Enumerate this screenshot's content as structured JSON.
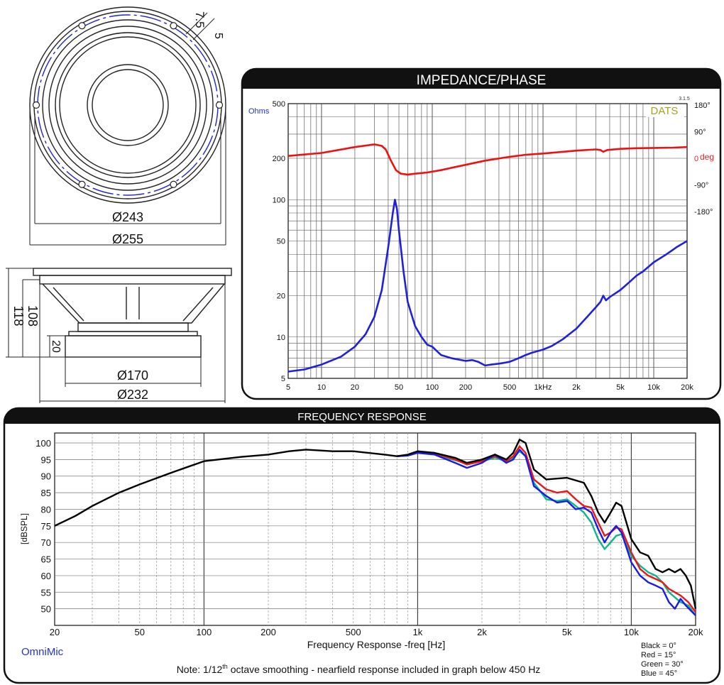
{
  "drawing": {
    "front": {
      "dims": [
        "Ø243",
        "Ø255"
      ],
      "side_dims": [
        "7.5",
        "5"
      ]
    },
    "side": {
      "dims": [
        "118",
        "108",
        "20",
        "Ø170",
        "Ø232"
      ]
    }
  },
  "chart_data": [
    {
      "type": "line",
      "title": "IMPEDANCE/PHASE",
      "xscale": "log",
      "xlim": [
        5,
        20000
      ],
      "x_ticks": [
        "5",
        "10",
        "20",
        "50",
        "100",
        "200",
        "500",
        "1kHz",
        "2k",
        "5k",
        "10k",
        "20k"
      ],
      "ylabel": "Ohms",
      "yscale": "log",
      "ylim": [
        5,
        500
      ],
      "y_ticks": [
        "500",
        "200",
        "100",
        "50",
        "20",
        "10",
        "5"
      ],
      "y2_ticks": [
        "180°",
        "90°",
        "0",
        "-90°",
        "-180°"
      ],
      "y2_unit": "deg",
      "y2lim": [
        -180,
        180
      ],
      "brand": "DATS",
      "brand_version": "3.1.5",
      "grid": true,
      "series": [
        {
          "color": "#1f1fdf",
          "axis": "left",
          "points": [
            [
              5,
              5.6
            ],
            [
              7,
              5.8
            ],
            [
              10,
              6.3
            ],
            [
              15,
              7.2
            ],
            [
              20,
              8.5
            ],
            [
              25,
              10.5
            ],
            [
              30,
              14
            ],
            [
              35,
              22
            ],
            [
              40,
              45
            ],
            [
              44,
              80
            ],
            [
              46,
              100
            ],
            [
              48,
              85
            ],
            [
              50,
              60
            ],
            [
              55,
              30
            ],
            [
              60,
              18
            ],
            [
              70,
              12
            ],
            [
              80,
              10
            ],
            [
              90,
              8.8
            ],
            [
              100,
              8.5
            ],
            [
              120,
              7.4
            ],
            [
              150,
              7
            ],
            [
              200,
              6.7
            ],
            [
              230,
              6.8
            ],
            [
              260,
              6.6
            ],
            [
              300,
              6.2
            ],
            [
              340,
              6.3
            ],
            [
              400,
              6.4
            ],
            [
              450,
              6.5
            ],
            [
              500,
              6.6
            ],
            [
              600,
              7
            ],
            [
              700,
              7.4
            ],
            [
              800,
              7.7
            ],
            [
              1000,
              8.1
            ],
            [
              1200,
              8.6
            ],
            [
              1500,
              9.6
            ],
            [
              2000,
              11.5
            ],
            [
              2500,
              14
            ],
            [
              3000,
              16.5
            ],
            [
              3300,
              18
            ],
            [
              3500,
              20
            ],
            [
              3700,
              18.5
            ],
            [
              4000,
              19.5
            ],
            [
              5000,
              22
            ],
            [
              6000,
              25
            ],
            [
              7000,
              28
            ],
            [
              8000,
              30
            ],
            [
              10000,
              35
            ],
            [
              13000,
              40
            ],
            [
              16000,
              45
            ],
            [
              20000,
              50
            ]
          ]
        },
        {
          "color": "#ee1111",
          "axis": "right",
          "points": [
            [
              5,
              8
            ],
            [
              10,
              18
            ],
            [
              20,
              38
            ],
            [
              30,
              47
            ],
            [
              35,
              42
            ],
            [
              38,
              30
            ],
            [
              42,
              -5
            ],
            [
              47,
              -40
            ],
            [
              52,
              -52
            ],
            [
              60,
              -55
            ],
            [
              70,
              -52
            ],
            [
              90,
              -48
            ],
            [
              120,
              -40
            ],
            [
              150,
              -32
            ],
            [
              200,
              -22
            ],
            [
              300,
              -8
            ],
            [
              500,
              5
            ],
            [
              700,
              12
            ],
            [
              1000,
              16
            ],
            [
              2000,
              26
            ],
            [
              3000,
              30
            ],
            [
              3300,
              28
            ],
            [
              3500,
              22
            ],
            [
              3800,
              28
            ],
            [
              5000,
              32
            ],
            [
              7000,
              34
            ],
            [
              10000,
              35
            ],
            [
              15000,
              36
            ],
            [
              20000,
              38
            ]
          ]
        }
      ]
    },
    {
      "type": "line",
      "title": "FREQUENCY RESPONSE",
      "xlabel": "Frequency Response -freq [Hz]",
      "ylabel": "[dBSPL]",
      "xscale": "log",
      "xlim": [
        20,
        20000
      ],
      "ylim": [
        45,
        103
      ],
      "x_ticks": [
        "20",
        "50",
        "100",
        "200",
        "500",
        "1k",
        "2k",
        "5k",
        "10k",
        "20k"
      ],
      "y_ticks": [
        "100",
        "95",
        "90",
        "85",
        "80",
        "75",
        "70",
        "65",
        "60",
        "55",
        "50"
      ],
      "brand": "OmniMic",
      "note_prefix": "Note: 1/12",
      "note_sup": "th",
      "note_suffix": " octave smoothing - nearfield response included in graph below 450 Hz",
      "legend": [
        "Black = 0°",
        "Red = 15°",
        "Green = 30°",
        "Blue = 45°"
      ],
      "grid": true,
      "series": [
        {
          "color": "#000000",
          "points": [
            [
              20,
              75
            ],
            [
              25,
              78
            ],
            [
              30,
              81
            ],
            [
              40,
              85
            ],
            [
              50,
              87.5
            ],
            [
              70,
              91
            ],
            [
              100,
              94.5
            ],
            [
              150,
              95.8
            ],
            [
              200,
              96.5
            ],
            [
              250,
              97.5
            ],
            [
              300,
              98
            ],
            [
              400,
              97.5
            ],
            [
              500,
              97.5
            ],
            [
              700,
              96.5
            ],
            [
              800,
              96
            ],
            [
              900,
              96.5
            ],
            [
              1000,
              97.5
            ],
            [
              1200,
              97
            ],
            [
              1500,
              95.5
            ],
            [
              1700,
              94
            ],
            [
              2000,
              95
            ],
            [
              2300,
              96.5
            ],
            [
              2600,
              95
            ],
            [
              2800,
              97
            ],
            [
              3000,
              101
            ],
            [
              3200,
              100
            ],
            [
              3500,
              92
            ],
            [
              4000,
              89
            ],
            [
              5000,
              89.5
            ],
            [
              6000,
              88
            ],
            [
              6500,
              84
            ],
            [
              7000,
              79
            ],
            [
              7500,
              76
            ],
            [
              8000,
              79
            ],
            [
              8500,
              82
            ],
            [
              9000,
              81
            ],
            [
              10000,
              71
            ],
            [
              11000,
              67
            ],
            [
              12000,
              66
            ],
            [
              13000,
              62
            ],
            [
              14000,
              61
            ],
            [
              15000,
              62
            ],
            [
              16000,
              61
            ],
            [
              17000,
              62
            ],
            [
              18000,
              60
            ],
            [
              19000,
              57
            ],
            [
              20000,
              50
            ]
          ]
        },
        {
          "color": "#e81818",
          "points": [
            [
              800,
              96
            ],
            [
              900,
              96.3
            ],
            [
              1000,
              97.4
            ],
            [
              1200,
              96.9
            ],
            [
              1500,
              95
            ],
            [
              1700,
              93.5
            ],
            [
              2000,
              94.5
            ],
            [
              2300,
              96
            ],
            [
              2600,
              94.5
            ],
            [
              2800,
              96
            ],
            [
              3000,
              99
            ],
            [
              3200,
              97
            ],
            [
              3500,
              89
            ],
            [
              4000,
              86
            ],
            [
              4500,
              85
            ],
            [
              5000,
              85.5
            ],
            [
              5500,
              83
            ],
            [
              6000,
              81
            ],
            [
              6500,
              80.5
            ],
            [
              7000,
              76
            ],
            [
              7500,
              72
            ],
            [
              8000,
              73
            ],
            [
              8500,
              74.5
            ],
            [
              9000,
              74
            ],
            [
              10000,
              67
            ],
            [
              11000,
              62
            ],
            [
              12000,
              60
            ],
            [
              13000,
              59
            ],
            [
              14000,
              58
            ],
            [
              15000,
              56
            ],
            [
              17000,
              54
            ],
            [
              18500,
              52
            ],
            [
              20000,
              49
            ]
          ]
        },
        {
          "color": "#12b58a",
          "points": [
            [
              800,
              96
            ],
            [
              900,
              96.2
            ],
            [
              1000,
              97.2
            ],
            [
              1200,
              96.6
            ],
            [
              1500,
              94.8
            ],
            [
              1700,
              93.8
            ],
            [
              2000,
              94.5
            ],
            [
              2300,
              95.5
            ],
            [
              2600,
              94.5
            ],
            [
              2800,
              95.5
            ],
            [
              3000,
              97.5
            ],
            [
              3200,
              96
            ],
            [
              3500,
              88
            ],
            [
              4000,
              83
            ],
            [
              4500,
              82.5
            ],
            [
              5000,
              83
            ],
            [
              5500,
              81
            ],
            [
              6000,
              79
            ],
            [
              6500,
              76
            ],
            [
              7000,
              71
            ],
            [
              7500,
              68
            ],
            [
              8000,
              70
            ],
            [
              8500,
              72
            ],
            [
              9000,
              72.5
            ],
            [
              10000,
              66
            ],
            [
              11000,
              63
            ],
            [
              12000,
              61
            ],
            [
              13000,
              60
            ],
            [
              14000,
              58
            ],
            [
              15000,
              55
            ],
            [
              17000,
              52
            ],
            [
              18500,
              51
            ],
            [
              20000,
              48
            ]
          ]
        },
        {
          "color": "#1a1ae6",
          "points": [
            [
              800,
              96
            ],
            [
              900,
              96.2
            ],
            [
              1000,
              97
            ],
            [
              1200,
              96.5
            ],
            [
              1500,
              94
            ],
            [
              1700,
              92.5
            ],
            [
              2000,
              94
            ],
            [
              2300,
              96.5
            ],
            [
              2600,
              94
            ],
            [
              2800,
              95
            ],
            [
              3000,
              98
            ],
            [
              3200,
              96
            ],
            [
              3500,
              87
            ],
            [
              4000,
              84
            ],
            [
              4500,
              82
            ],
            [
              5000,
              82.5
            ],
            [
              5500,
              80
            ],
            [
              6000,
              80.5
            ],
            [
              6500,
              79
            ],
            [
              7000,
              74
            ],
            [
              7500,
              70
            ],
            [
              8000,
              73
            ],
            [
              8500,
              75
            ],
            [
              9000,
              73
            ],
            [
              10000,
              64
            ],
            [
              11000,
              60
            ],
            [
              12000,
              58
            ],
            [
              13000,
              57
            ],
            [
              14000,
              56
            ],
            [
              15000,
              52
            ],
            [
              16000,
              50
            ],
            [
              17000,
              53
            ],
            [
              18000,
              51
            ],
            [
              20000,
              48
            ]
          ]
        }
      ]
    }
  ]
}
